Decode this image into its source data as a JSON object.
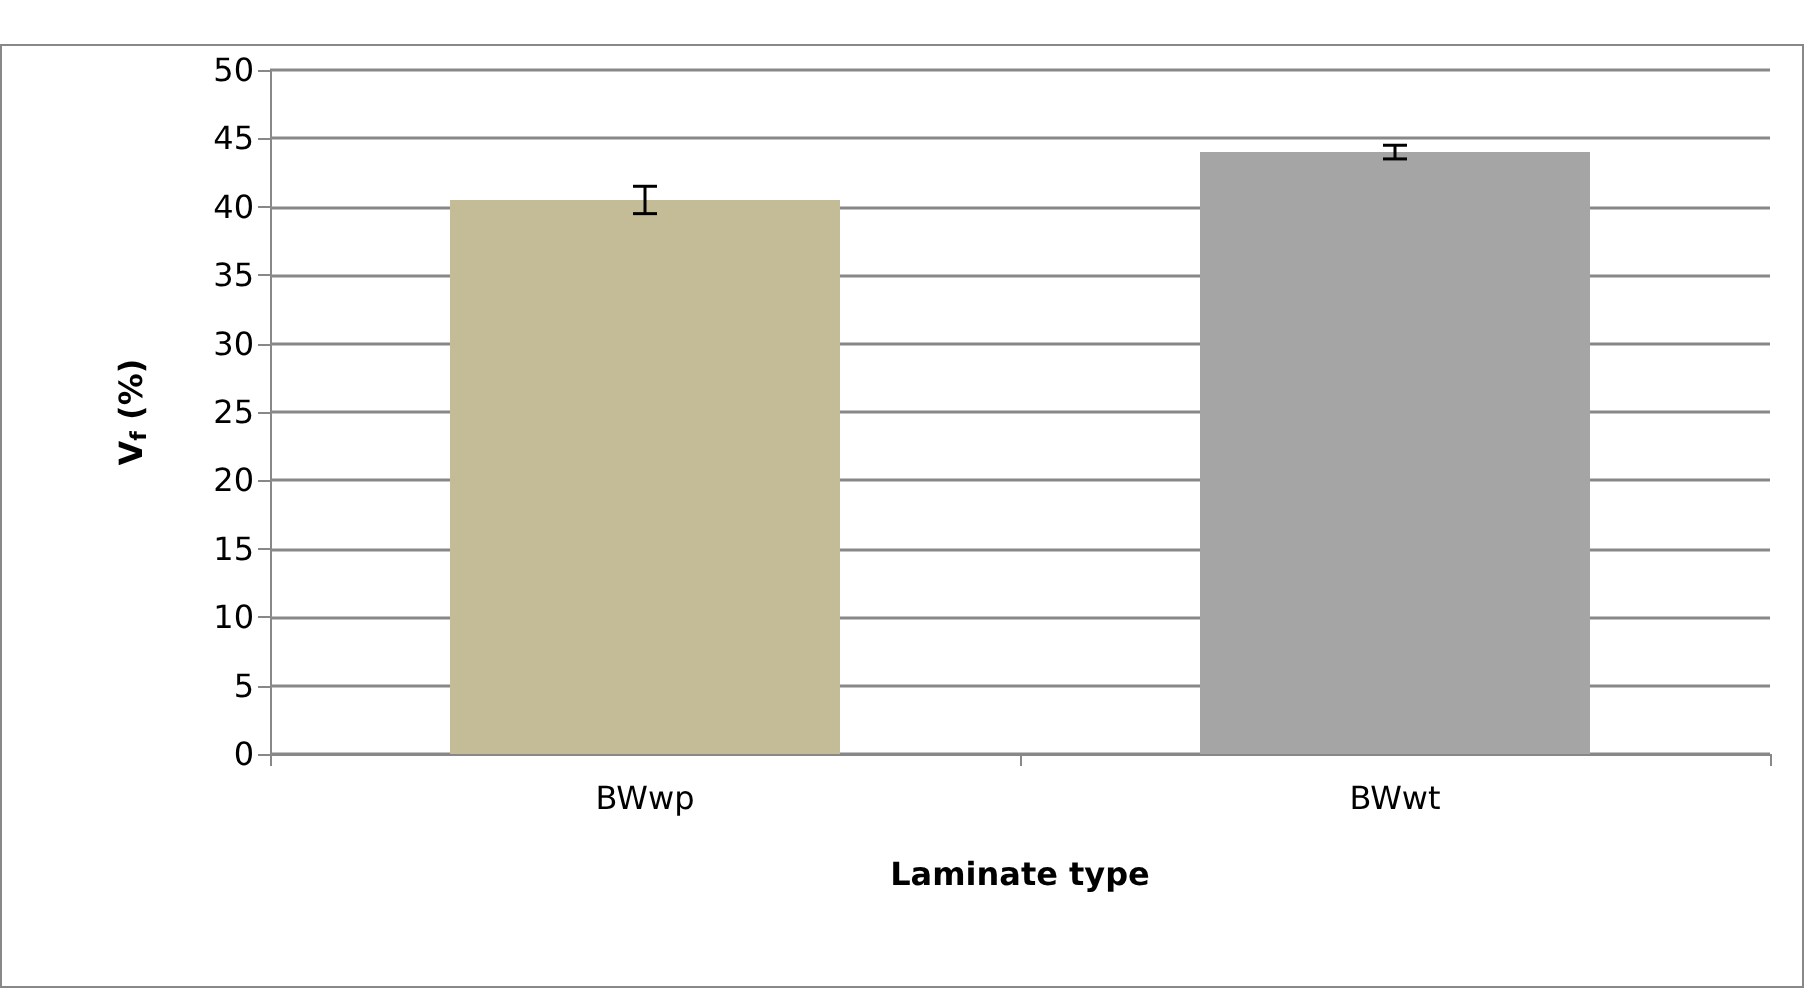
{
  "chart_data": {
    "type": "bar",
    "xlabel": "Laminate type",
    "ylabel": "V$_{f}$ (%)",
    "categories": [
      "BWwp",
      "BWwt"
    ],
    "values": [
      40.5,
      44.0
    ],
    "colors": [
      "#c4bc96",
      "#a5a5a5"
    ],
    "errors": [
      1.0,
      0.5
    ],
    "ylim": [
      0,
      50
    ],
    "yticks": [
      0,
      5,
      10,
      15,
      20,
      25,
      30,
      35,
      40,
      45,
      50
    ],
    "grid": "y"
  }
}
